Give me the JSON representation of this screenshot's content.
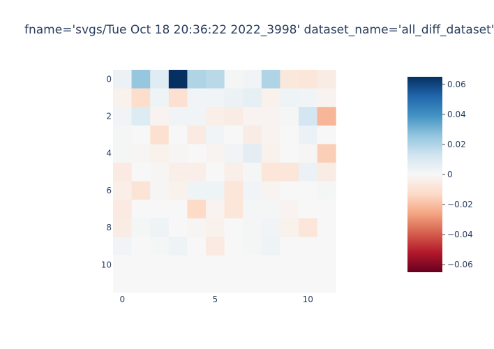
{
  "chart_data": {
    "type": "heatmap",
    "title": "fname='svgs/Tue Oct 18 20:36:22 2022_3998' dataset_name='all_diff_dataset'",
    "rows": 12,
    "cols": 12,
    "x_ticks": [
      0,
      5,
      10
    ],
    "y_ticks": [
      0,
      2,
      4,
      6,
      8,
      10
    ],
    "zmin": -0.065,
    "zmax": 0.065,
    "colorscale": "RdBu",
    "colorbar_ticks": [
      0.06,
      0.04,
      0.02,
      0,
      -0.02,
      -0.04,
      -0.06
    ],
    "colorbar_tick_labels": [
      "0.06",
      "0.04",
      "0.02",
      "0",
      "−0.02",
      "−0.04",
      "−0.06"
    ],
    "z": [
      [
        0.004,
        0.025,
        0.008,
        0.065,
        0.02,
        0.018,
        0.001,
        0.002,
        0.02,
        -0.007,
        -0.008,
        -0.005
      ],
      [
        -0.003,
        -0.012,
        0.003,
        -0.01,
        0.002,
        0.002,
        0.004,
        0.006,
        -0.003,
        0.003,
        0.002,
        -0.002
      ],
      [
        0.002,
        0.009,
        -0.002,
        0.002,
        0.002,
        -0.004,
        -0.005,
        -0.002,
        -0.002,
        0.001,
        0.012,
        -0.022
      ],
      [
        0.001,
        0.0,
        -0.01,
        0.0,
        -0.006,
        0.002,
        0.0,
        -0.005,
        -0.002,
        0.0,
        0.004,
        0.0
      ],
      [
        0.001,
        -0.001,
        -0.003,
        -0.001,
        0.0,
        -0.002,
        0.002,
        0.007,
        -0.003,
        0.0,
        -0.001,
        -0.016
      ],
      [
        -0.006,
        0.0,
        -0.001,
        -0.004,
        -0.004,
        0.0,
        -0.004,
        0.001,
        -0.008,
        -0.008,
        0.004,
        -0.005
      ],
      [
        -0.004,
        -0.009,
        -0.001,
        -0.003,
        0.003,
        0.003,
        -0.008,
        0.002,
        -0.002,
        0.0,
        0.0,
        0.001
      ],
      [
        -0.006,
        0.0,
        0.0,
        0.0,
        -0.013,
        -0.002,
        -0.008,
        0.001,
        0.001,
        -0.002,
        0.0,
        0.0
      ],
      [
        -0.005,
        0.001,
        0.003,
        0.0,
        -0.001,
        -0.003,
        0.0,
        0.001,
        0.002,
        -0.003,
        -0.008,
        0.0
      ],
      [
        0.002,
        0.0,
        0.001,
        0.003,
        0.0,
        -0.006,
        0.0,
        0.001,
        0.003,
        0.0,
        0.0,
        0.0
      ],
      [
        0,
        0,
        0,
        0,
        0,
        0,
        0,
        0,
        0,
        0,
        0,
        0
      ],
      [
        0,
        0,
        0,
        0,
        0,
        0,
        0,
        0,
        0,
        0,
        0,
        0
      ]
    ]
  }
}
